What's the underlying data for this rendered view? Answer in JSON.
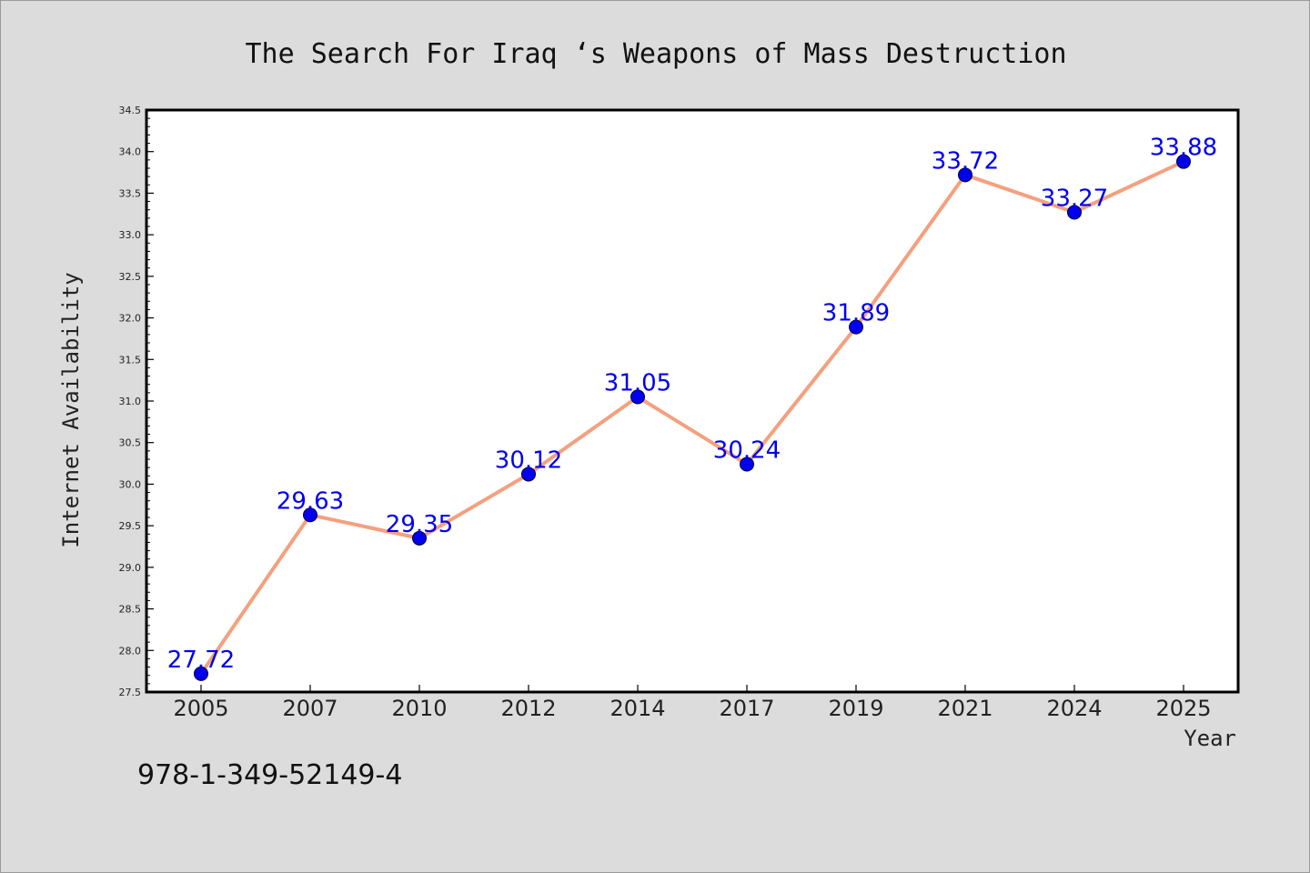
{
  "chart_data": {
    "type": "line",
    "title": "The Search For Iraq ‘s Weapons of Mass Destruction",
    "xlabel": "Year",
    "ylabel": "Internet Availability",
    "categories": [
      "2005",
      "2007",
      "2010",
      "2012",
      "2014",
      "2017",
      "2019",
      "2021",
      "2024",
      "2025"
    ],
    "values": [
      27.72,
      29.63,
      29.35,
      30.12,
      31.05,
      30.24,
      31.89,
      33.72,
      33.27,
      33.88
    ],
    "data_labels": [
      "27.72",
      "29.63",
      "29.35",
      "30.12",
      "31.05",
      "30.24",
      "31.89",
      "33.72",
      "33.27",
      "33.88"
    ],
    "ylim": [
      27.5,
      34.5
    ],
    "yticks": [
      "27.5",
      "28.0",
      "28.5",
      "29.0",
      "29.5",
      "30.0",
      "30.5",
      "31.0",
      "31.5",
      "32.0",
      "32.5",
      "33.0",
      "33.5",
      "34.0",
      "34.5"
    ],
    "grid": false,
    "legend": "none",
    "colors": {
      "line": "#f4a07e",
      "marker": "#0000ee",
      "label": "#0000ee",
      "background": "#dcdcdc",
      "plot_background": "#ffffff"
    }
  },
  "footer": {
    "isbn": "978-1-349-52149-4"
  }
}
